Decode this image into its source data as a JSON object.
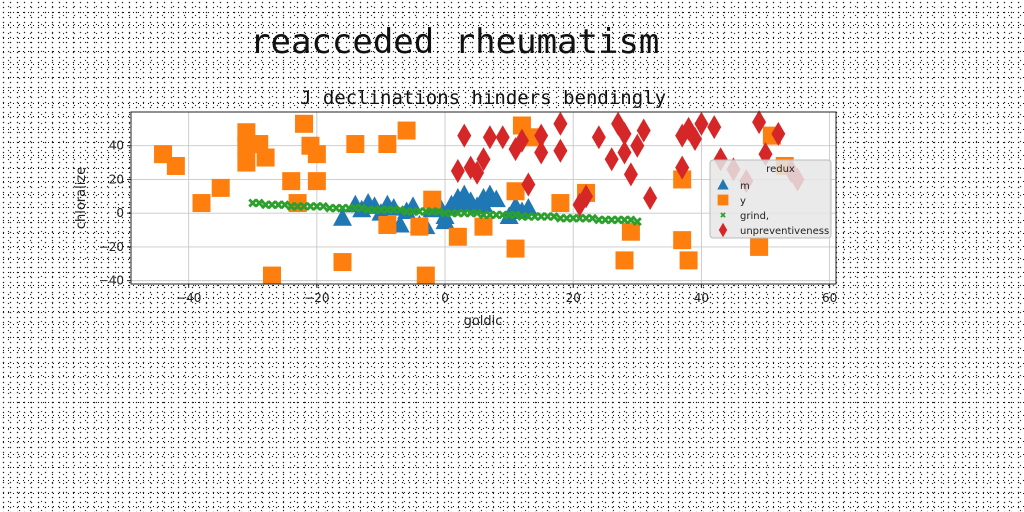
{
  "page": {
    "title": "reacceded rheumatism"
  },
  "chart_data": {
    "type": "scatter",
    "title": "J declinations hinders bendingly",
    "xlabel": "goldic",
    "ylabel": "chloralize",
    "xlim": [
      -49,
      61
    ],
    "ylim": [
      -42,
      60
    ],
    "xticks": [
      -40,
      -20,
      0,
      20,
      40,
      60
    ],
    "yticks": [
      -40,
      -20,
      0,
      20,
      40
    ],
    "grid": true,
    "legend": {
      "title": "redux",
      "position": "right"
    },
    "series": [
      {
        "name": "m",
        "marker": "triangle",
        "color": "#1f77b4",
        "points": [
          [
            -16,
            -3
          ],
          [
            -14,
            5
          ],
          [
            -13,
            2
          ],
          [
            -12,
            6
          ],
          [
            -11,
            4
          ],
          [
            -10,
            0
          ],
          [
            -9,
            5
          ],
          [
            -8,
            3
          ],
          [
            -7,
            -7
          ],
          [
            -6,
            1
          ],
          [
            -5,
            4
          ],
          [
            -4,
            -7
          ],
          [
            -3,
            -8
          ],
          [
            -2,
            2
          ],
          [
            -1,
            5
          ],
          [
            0,
            -5
          ],
          [
            0,
            -2
          ],
          [
            1,
            5
          ],
          [
            1,
            3
          ],
          [
            2,
            9
          ],
          [
            2,
            5
          ],
          [
            3,
            11
          ],
          [
            3,
            6
          ],
          [
            4,
            7
          ],
          [
            5,
            4
          ],
          [
            6,
            9
          ],
          [
            6,
            5
          ],
          [
            7,
            11
          ],
          [
            8,
            8
          ],
          [
            10,
            -2
          ],
          [
            11,
            4
          ],
          [
            12,
            1
          ],
          [
            13,
            3
          ]
        ]
      },
      {
        "name": "y",
        "marker": "square",
        "color": "#ff7f0e",
        "points": [
          [
            -44,
            35
          ],
          [
            -42,
            28
          ],
          [
            -38,
            6
          ],
          [
            -35,
            15
          ],
          [
            -31,
            48
          ],
          [
            -31,
            40
          ],
          [
            -31,
            30
          ],
          [
            -29,
            41
          ],
          [
            -28,
            33
          ],
          [
            -27,
            -37
          ],
          [
            -24,
            19
          ],
          [
            -23,
            6
          ],
          [
            -22,
            53
          ],
          [
            -21,
            40
          ],
          [
            -20,
            35
          ],
          [
            -20,
            19
          ],
          [
            -16,
            -29
          ],
          [
            -14,
            41
          ],
          [
            -9,
            41
          ],
          [
            -9,
            -7
          ],
          [
            -6,
            49
          ],
          [
            -4,
            -8
          ],
          [
            -3,
            -37
          ],
          [
            -2,
            8
          ],
          [
            2,
            -14
          ],
          [
            6,
            -8
          ],
          [
            11,
            13
          ],
          [
            11,
            -21
          ],
          [
            12,
            52
          ],
          [
            14,
            45
          ],
          [
            18,
            6
          ],
          [
            22,
            12
          ],
          [
            28,
            -28
          ],
          [
            29,
            -11
          ],
          [
            37,
            20
          ],
          [
            37,
            -16
          ],
          [
            38,
            -28
          ],
          [
            49,
            -20
          ],
          [
            51,
            46
          ],
          [
            53,
            28
          ]
        ]
      },
      {
        "name": "grind,",
        "marker": "x",
        "color": "#2ca02c",
        "points": [
          [
            -30,
            6
          ],
          [
            -29,
            6
          ],
          [
            -28,
            5
          ],
          [
            -27,
            5
          ],
          [
            -26,
            5
          ],
          [
            -25,
            5
          ],
          [
            -24,
            4
          ],
          [
            -23,
            4
          ],
          [
            -22,
            4
          ],
          [
            -21,
            4
          ],
          [
            -20,
            4
          ],
          [
            -19,
            4
          ],
          [
            -18,
            3
          ],
          [
            -17,
            3
          ],
          [
            -16,
            3
          ],
          [
            -15,
            3
          ],
          [
            -14,
            3
          ],
          [
            -13,
            3
          ],
          [
            -12,
            2
          ],
          [
            -11,
            2
          ],
          [
            -10,
            2
          ],
          [
            -9,
            2
          ],
          [
            -8,
            2
          ],
          [
            -7,
            2
          ],
          [
            -6,
            1
          ],
          [
            -5,
            1
          ],
          [
            -4,
            1
          ],
          [
            -3,
            1
          ],
          [
            -2,
            1
          ],
          [
            -1,
            1
          ],
          [
            0,
            0
          ],
          [
            1,
            0
          ],
          [
            2,
            0
          ],
          [
            3,
            0
          ],
          [
            4,
            0
          ],
          [
            5,
            0
          ],
          [
            6,
            -1
          ],
          [
            7,
            -1
          ],
          [
            8,
            -1
          ],
          [
            9,
            -1
          ],
          [
            10,
            -1
          ],
          [
            11,
            -1
          ],
          [
            12,
            -2
          ],
          [
            13,
            -2
          ],
          [
            14,
            -2
          ],
          [
            15,
            -2
          ],
          [
            16,
            -2
          ],
          [
            17,
            -2
          ],
          [
            18,
            -3
          ],
          [
            19,
            -3
          ],
          [
            20,
            -3
          ],
          [
            21,
            -3
          ],
          [
            22,
            -3
          ],
          [
            23,
            -3
          ],
          [
            24,
            -4
          ],
          [
            25,
            -4
          ],
          [
            26,
            -4
          ],
          [
            27,
            -4
          ],
          [
            28,
            -4
          ],
          [
            29,
            -4
          ],
          [
            30,
            -5
          ]
        ]
      },
      {
        "name": "unpreventiveness",
        "marker": "thin_diamond",
        "color": "#d62728",
        "points": [
          [
            2,
            25
          ],
          [
            3,
            46
          ],
          [
            4,
            27
          ],
          [
            5,
            24
          ],
          [
            6,
            32
          ],
          [
            7,
            45
          ],
          [
            9,
            45
          ],
          [
            11,
            38
          ],
          [
            12,
            43
          ],
          [
            13,
            17
          ],
          [
            15,
            36
          ],
          [
            15,
            46
          ],
          [
            18,
            37
          ],
          [
            18,
            53
          ],
          [
            21,
            5
          ],
          [
            22,
            10
          ],
          [
            24,
            45
          ],
          [
            26,
            32
          ],
          [
            27,
            53
          ],
          [
            28,
            36
          ],
          [
            28,
            47
          ],
          [
            29,
            23
          ],
          [
            30,
            40
          ],
          [
            31,
            49
          ],
          [
            32,
            9
          ],
          [
            37,
            27
          ],
          [
            37,
            46
          ],
          [
            38,
            50
          ],
          [
            39,
            44
          ],
          [
            40,
            53
          ],
          [
            42,
            51
          ],
          [
            43,
            32
          ],
          [
            45,
            26
          ],
          [
            47,
            19
          ],
          [
            49,
            54
          ],
          [
            50,
            35
          ],
          [
            52,
            47
          ],
          [
            54,
            25
          ],
          [
            55,
            20
          ]
        ]
      }
    ]
  }
}
